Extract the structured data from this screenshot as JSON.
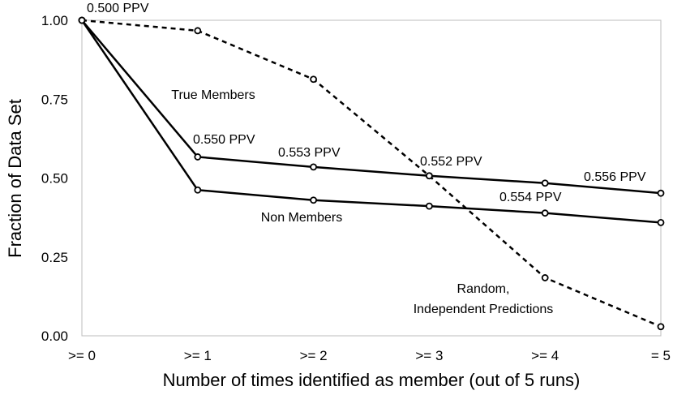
{
  "chart_data": {
    "type": "line",
    "title": "",
    "xlabel": "Number of times identified as member (out of 5 runs)",
    "ylabel": "Fraction of Data Set",
    "categories": [
      ">= 0",
      ">= 1",
      ">= 2",
      ">= 3",
      ">= 4",
      "= 5"
    ],
    "ylim": [
      0,
      1
    ],
    "yticks": [
      "0.00",
      "0.25",
      "0.50",
      "0.75",
      "1.00"
    ],
    "grid": false,
    "legend": "none",
    "series": [
      {
        "name": "True Members",
        "values": [
          1.0,
          0.567,
          0.535,
          0.507,
          0.484,
          0.452
        ],
        "style": "solid",
        "color": "#000000"
      },
      {
        "name": "Non Members",
        "values": [
          1.0,
          0.462,
          0.43,
          0.411,
          0.389,
          0.359
        ],
        "style": "solid",
        "color": "#000000"
      },
      {
        "name": "Random, Independent Predictions",
        "values": [
          1.0,
          0.967,
          0.813,
          0.507,
          0.184,
          0.029
        ],
        "style": "dashed",
        "color": "#000000"
      }
    ],
    "annotations": {
      "series_labels": [
        {
          "text": "True Members"
        },
        {
          "text": "Non Members"
        },
        {
          "text": "Random,"
        },
        {
          "text": "Independent Predictions"
        }
      ],
      "ppv_labels": [
        {
          "text": "0.500 PPV"
        },
        {
          "text": "0.550 PPV"
        },
        {
          "text": "0.553 PPV"
        },
        {
          "text": "0.552 PPV"
        },
        {
          "text": "0.554 PPV"
        },
        {
          "text": "0.556 PPV"
        }
      ]
    }
  }
}
